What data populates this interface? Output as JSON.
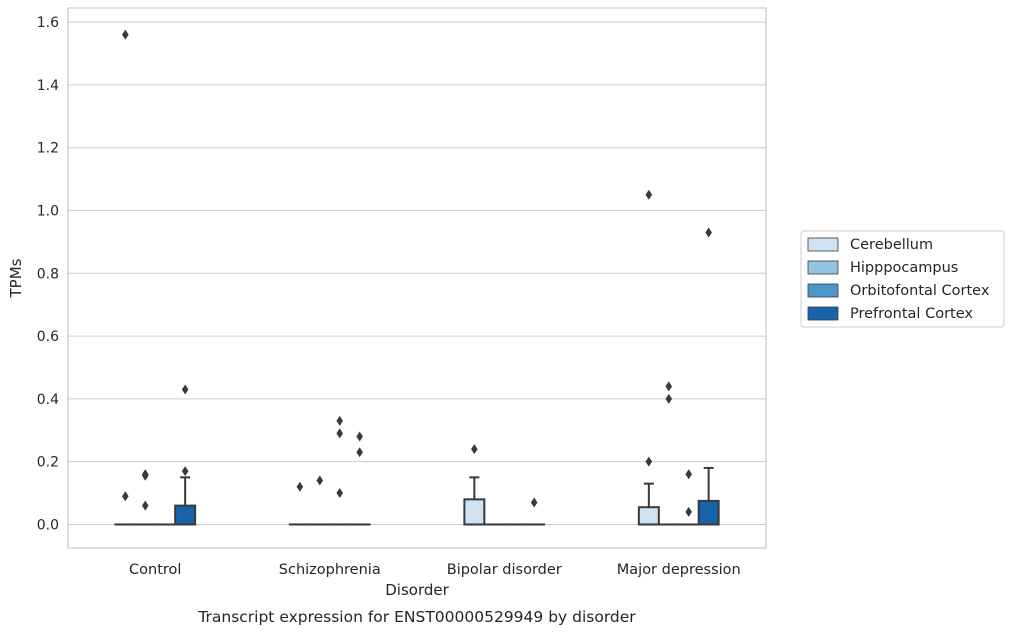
{
  "chart_data": {
    "type": "box",
    "title": "",
    "caption": "Transcript expression for ENST00000529949 by disorder",
    "xlabel": "Disorder",
    "ylabel": "TPMs",
    "ylim": [
      -0.075,
      1.645
    ],
    "yticks": [
      0.0,
      0.2,
      0.4,
      0.6,
      0.8,
      1.0,
      1.2,
      1.4,
      1.6
    ],
    "ytick_labels": [
      "0.0",
      "0.2",
      "0.4",
      "0.6",
      "0.8",
      "1.0",
      "1.2",
      "1.4",
      "1.6"
    ],
    "grid": "horizontal",
    "legend_position": "right",
    "categories": [
      "Control",
      "Schizophrenia",
      "Bipolar disorder",
      "Major depression"
    ],
    "series": [
      {
        "name": "Cerebellum",
        "color": "#d0e1f2",
        "boxes": [
          {
            "q1": 0,
            "median": 0,
            "q3": 0,
            "whisker_low": 0,
            "whisker_high": 0,
            "outliers": [
              1.56,
              0.09
            ]
          },
          {
            "q1": 0,
            "median": 0,
            "q3": 0,
            "whisker_low": 0,
            "whisker_high": 0,
            "outliers": [
              0.12
            ]
          },
          {
            "q1": 0,
            "median": 0,
            "q3": 0.08,
            "whisker_low": 0,
            "whisker_high": 0.15,
            "outliers": [
              0.24
            ]
          },
          {
            "q1": 0,
            "median": 0,
            "q3": 0.055,
            "whisker_low": 0,
            "whisker_high": 0.13,
            "outliers": [
              1.05,
              0.2
            ]
          }
        ]
      },
      {
        "name": "Hipppocampus",
        "color": "#94c4df",
        "boxes": [
          {
            "q1": 0,
            "median": 0,
            "q3": 0,
            "whisker_low": 0,
            "whisker_high": 0,
            "outliers": [
              0.16,
              0.155,
              0.06
            ]
          },
          {
            "q1": 0,
            "median": 0,
            "q3": 0,
            "whisker_low": 0,
            "whisker_high": 0,
            "outliers": [
              0.14
            ]
          },
          {
            "q1": 0,
            "median": 0,
            "q3": 0,
            "whisker_low": 0,
            "whisker_high": 0,
            "outliers": []
          },
          {
            "q1": 0,
            "median": 0,
            "q3": 0,
            "whisker_low": 0,
            "whisker_high": 0,
            "outliers": [
              0.44,
              0.4
            ]
          }
        ]
      },
      {
        "name": "Orbitofontal Cortex",
        "color": "#4a98c9",
        "boxes": [
          {
            "q1": 0,
            "median": 0,
            "q3": 0,
            "whisker_low": 0,
            "whisker_high": 0,
            "outliers": []
          },
          {
            "q1": 0,
            "median": 0,
            "q3": 0,
            "whisker_low": 0,
            "whisker_high": 0,
            "outliers": [
              0.33,
              0.29,
              0.1
            ]
          },
          {
            "q1": 0,
            "median": 0,
            "q3": 0,
            "whisker_low": 0,
            "whisker_high": 0,
            "outliers": []
          },
          {
            "q1": 0,
            "median": 0,
            "q3": 0,
            "whisker_low": 0,
            "whisker_high": 0,
            "outliers": [
              0.16,
              0.04
            ]
          }
        ]
      },
      {
        "name": "Prefrontal Cortex",
        "color": "#1764ab",
        "boxes": [
          {
            "q1": 0,
            "median": 0,
            "q3": 0.06,
            "whisker_low": 0,
            "whisker_high": 0.15,
            "outliers": [
              0.43,
              0.17
            ]
          },
          {
            "q1": 0,
            "median": 0,
            "q3": 0,
            "whisker_low": 0,
            "whisker_high": 0,
            "outliers": [
              0.28,
              0.23
            ]
          },
          {
            "q1": 0,
            "median": 0,
            "q3": 0,
            "whisker_low": 0,
            "whisker_high": 0,
            "outliers": [
              0.07
            ]
          },
          {
            "q1": 0,
            "median": 0,
            "q3": 0.075,
            "whisker_low": 0,
            "whisker_high": 0.18,
            "outliers": [
              0.93
            ]
          }
        ]
      }
    ]
  }
}
